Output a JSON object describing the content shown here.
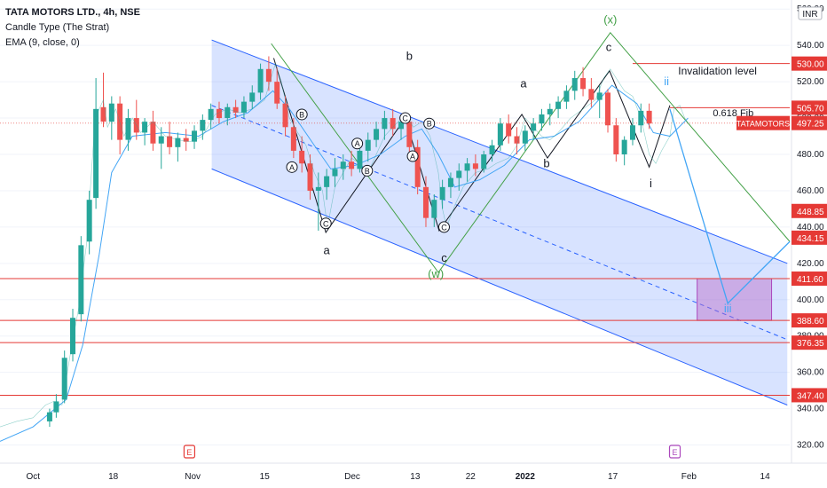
{
  "legend": {
    "title": "TATA MOTORS LTD., 4h, NSE",
    "line2": "Candle Type (The Strat)",
    "line3": "EMA (9, close, 0)"
  },
  "currency": "INR",
  "chart_data": {
    "type": "candlestick",
    "symbol": "TATAMOTORS",
    "interval": "4h",
    "ylim": [
      310,
      565
    ],
    "y_ticks": [
      320,
      340,
      360,
      380,
      400,
      420,
      440,
      460,
      480,
      500,
      520,
      540,
      560
    ],
    "y_tick_labels": [
      "320.00",
      "340.00",
      "360.00",
      "380.00",
      "400.00",
      "420.00",
      "440.00",
      "460.00",
      "480.00",
      "500.00",
      "520.00",
      "540.00",
      "560.00"
    ],
    "x_ticks": [
      {
        "label": "Oct",
        "pos": 0.04
      },
      {
        "label": "18",
        "pos": 0.137
      },
      {
        "label": "Nov",
        "pos": 0.233
      },
      {
        "label": "15",
        "pos": 0.32
      },
      {
        "label": "Dec",
        "pos": 0.426
      },
      {
        "label": "13",
        "pos": 0.502
      },
      {
        "label": "22",
        "pos": 0.569
      },
      {
        "label": "2022",
        "pos": 0.635
      },
      {
        "label": "17",
        "pos": 0.741
      },
      {
        "label": "Feb",
        "pos": 0.833
      },
      {
        "label": "14",
        "pos": 0.925
      }
    ],
    "price_path": [
      [
        0.0,
        330
      ],
      [
        0.02,
        333
      ],
      [
        0.04,
        335
      ],
      [
        0.055,
        342
      ],
      [
        0.065,
        344
      ],
      [
        0.075,
        342
      ],
      [
        0.085,
        370
      ],
      [
        0.095,
        395
      ],
      [
        0.105,
        432
      ],
      [
        0.115,
        500
      ],
      [
        0.125,
        510
      ],
      [
        0.13,
        495
      ],
      [
        0.14,
        505
      ],
      [
        0.15,
        490
      ],
      [
        0.16,
        500
      ],
      [
        0.17,
        492
      ],
      [
        0.185,
        498
      ],
      [
        0.2,
        490
      ],
      [
        0.215,
        488
      ],
      [
        0.23,
        487
      ],
      [
        0.245,
        490
      ],
      [
        0.26,
        502
      ],
      [
        0.275,
        505
      ],
      [
        0.29,
        503
      ],
      [
        0.305,
        505
      ],
      [
        0.32,
        510
      ],
      [
        0.333,
        530
      ],
      [
        0.34,
        520
      ],
      [
        0.35,
        500
      ],
      [
        0.36,
        492
      ],
      [
        0.37,
        485
      ],
      [
        0.38,
        470
      ],
      [
        0.39,
        460
      ],
      [
        0.396,
        440
      ],
      [
        0.405,
        462
      ],
      [
        0.415,
        470
      ],
      [
        0.425,
        478
      ],
      [
        0.435,
        475
      ],
      [
        0.445,
        470
      ],
      [
        0.455,
        480
      ],
      [
        0.465,
        490
      ],
      [
        0.475,
        495
      ],
      [
        0.49,
        502
      ],
      [
        0.5,
        495
      ],
      [
        0.51,
        498
      ],
      [
        0.52,
        490
      ],
      [
        0.53,
        470
      ],
      [
        0.535,
        450
      ],
      [
        0.54,
        440
      ],
      [
        0.55,
        452
      ],
      [
        0.56,
        462
      ],
      [
        0.575,
        470
      ],
      [
        0.59,
        472
      ],
      [
        0.6,
        475
      ],
      [
        0.615,
        478
      ],
      [
        0.625,
        485
      ],
      [
        0.635,
        500
      ],
      [
        0.645,
        495
      ],
      [
        0.655,
        490
      ],
      [
        0.665,
        488
      ],
      [
        0.675,
        492
      ],
      [
        0.69,
        500
      ],
      [
        0.705,
        505
      ],
      [
        0.72,
        510
      ],
      [
        0.73,
        522
      ],
      [
        0.738,
        527
      ],
      [
        0.745,
        522
      ],
      [
        0.755,
        515
      ],
      [
        0.765,
        512
      ],
      [
        0.775,
        500
      ],
      [
        0.785,
        480
      ],
      [
        0.793,
        475
      ],
      [
        0.8,
        482
      ],
      [
        0.81,
        490
      ],
      [
        0.815,
        505
      ],
      [
        0.822,
        507
      ],
      [
        0.828,
        500
      ],
      [
        0.832,
        497.25
      ]
    ],
    "ema9_path": [
      [
        0.0,
        322
      ],
      [
        0.04,
        330
      ],
      [
        0.08,
        345
      ],
      [
        0.1,
        375
      ],
      [
        0.12,
        425
      ],
      [
        0.135,
        470
      ],
      [
        0.16,
        490
      ],
      [
        0.2,
        492
      ],
      [
        0.24,
        490
      ],
      [
        0.27,
        498
      ],
      [
        0.3,
        503
      ],
      [
        0.33,
        515
      ],
      [
        0.35,
        505
      ],
      [
        0.38,
        485
      ],
      [
        0.4,
        472
      ],
      [
        0.43,
        474
      ],
      [
        0.46,
        480
      ],
      [
        0.49,
        490
      ],
      [
        0.51,
        494
      ],
      [
        0.53,
        480
      ],
      [
        0.55,
        462
      ],
      [
        0.58,
        466
      ],
      [
        0.61,
        474
      ],
      [
        0.64,
        488
      ],
      [
        0.67,
        490
      ],
      [
        0.7,
        498
      ],
      [
        0.74,
        518
      ],
      [
        0.77,
        508
      ],
      [
        0.79,
        492
      ],
      [
        0.81,
        490
      ],
      [
        0.832,
        500
      ]
    ],
    "candles": [
      {
        "i": 0.06,
        "o": 333,
        "h": 340,
        "l": 330,
        "c": 338
      },
      {
        "i": 0.068,
        "o": 338,
        "h": 348,
        "l": 335,
        "c": 344
      },
      {
        "i": 0.078,
        "o": 345,
        "h": 372,
        "l": 343,
        "c": 368
      },
      {
        "i": 0.088,
        "o": 370,
        "h": 395,
        "l": 366,
        "c": 390
      },
      {
        "i": 0.098,
        "o": 392,
        "h": 435,
        "l": 388,
        "c": 430
      },
      {
        "i": 0.108,
        "o": 432,
        "h": 460,
        "l": 425,
        "c": 455
      },
      {
        "i": 0.116,
        "o": 456,
        "h": 522,
        "l": 450,
        "c": 505
      },
      {
        "i": 0.125,
        "o": 506,
        "h": 525,
        "l": 495,
        "c": 498
      },
      {
        "i": 0.135,
        "o": 498,
        "h": 512,
        "l": 488,
        "c": 508
      },
      {
        "i": 0.145,
        "o": 508,
        "h": 512,
        "l": 480,
        "c": 488
      },
      {
        "i": 0.155,
        "o": 488,
        "h": 505,
        "l": 482,
        "c": 500
      },
      {
        "i": 0.165,
        "o": 500,
        "h": 510,
        "l": 488,
        "c": 492
      },
      {
        "i": 0.175,
        "o": 492,
        "h": 500,
        "l": 485,
        "c": 498
      },
      {
        "i": 0.185,
        "o": 498,
        "h": 504,
        "l": 482,
        "c": 486
      },
      {
        "i": 0.195,
        "o": 486,
        "h": 495,
        "l": 472,
        "c": 490
      },
      {
        "i": 0.205,
        "o": 490,
        "h": 498,
        "l": 480,
        "c": 484
      },
      {
        "i": 0.215,
        "o": 484,
        "h": 492,
        "l": 476,
        "c": 489
      },
      {
        "i": 0.225,
        "o": 489,
        "h": 494,
        "l": 482,
        "c": 487
      },
      {
        "i": 0.235,
        "o": 487,
        "h": 496,
        "l": 483,
        "c": 493
      },
      {
        "i": 0.245,
        "o": 493,
        "h": 502,
        "l": 488,
        "c": 499
      },
      {
        "i": 0.255,
        "o": 499,
        "h": 508,
        "l": 494,
        "c": 505
      },
      {
        "i": 0.265,
        "o": 505,
        "h": 509,
        "l": 497,
        "c": 500
      },
      {
        "i": 0.275,
        "o": 500,
        "h": 508,
        "l": 496,
        "c": 506
      },
      {
        "i": 0.285,
        "o": 506,
        "h": 510,
        "l": 500,
        "c": 503
      },
      {
        "i": 0.295,
        "o": 503,
        "h": 512,
        "l": 500,
        "c": 509
      },
      {
        "i": 0.305,
        "o": 509,
        "h": 518,
        "l": 505,
        "c": 514
      },
      {
        "i": 0.315,
        "o": 514,
        "h": 530,
        "l": 510,
        "c": 527
      },
      {
        "i": 0.325,
        "o": 527,
        "h": 534,
        "l": 515,
        "c": 520
      },
      {
        "i": 0.335,
        "o": 520,
        "h": 528,
        "l": 505,
        "c": 508
      },
      {
        "i": 0.345,
        "o": 508,
        "h": 512,
        "l": 490,
        "c": 495
      },
      {
        "i": 0.355,
        "o": 495,
        "h": 500,
        "l": 478,
        "c": 482
      },
      {
        "i": 0.365,
        "o": 482,
        "h": 490,
        "l": 470,
        "c": 475
      },
      {
        "i": 0.375,
        "o": 475,
        "h": 480,
        "l": 455,
        "c": 460
      },
      {
        "i": 0.385,
        "o": 460,
        "h": 470,
        "l": 438,
        "c": 462
      },
      {
        "i": 0.395,
        "o": 462,
        "h": 472,
        "l": 455,
        "c": 468
      },
      {
        "i": 0.405,
        "o": 468,
        "h": 478,
        "l": 462,
        "c": 472
      },
      {
        "i": 0.415,
        "o": 472,
        "h": 480,
        "l": 466,
        "c": 476
      },
      {
        "i": 0.425,
        "o": 476,
        "h": 482,
        "l": 468,
        "c": 472
      },
      {
        "i": 0.435,
        "o": 472,
        "h": 485,
        "l": 470,
        "c": 482
      },
      {
        "i": 0.445,
        "o": 482,
        "h": 492,
        "l": 476,
        "c": 488
      },
      {
        "i": 0.455,
        "o": 488,
        "h": 498,
        "l": 484,
        "c": 494
      },
      {
        "i": 0.465,
        "o": 494,
        "h": 504,
        "l": 488,
        "c": 500
      },
      {
        "i": 0.475,
        "o": 500,
        "h": 505,
        "l": 490,
        "c": 494
      },
      {
        "i": 0.485,
        "o": 494,
        "h": 502,
        "l": 488,
        "c": 498
      },
      {
        "i": 0.495,
        "o": 498,
        "h": 500,
        "l": 480,
        "c": 484
      },
      {
        "i": 0.505,
        "o": 484,
        "h": 488,
        "l": 458,
        "c": 462
      },
      {
        "i": 0.515,
        "o": 462,
        "h": 468,
        "l": 440,
        "c": 445
      },
      {
        "i": 0.525,
        "o": 445,
        "h": 458,
        "l": 440,
        "c": 455
      },
      {
        "i": 0.535,
        "o": 455,
        "h": 466,
        "l": 450,
        "c": 462
      },
      {
        "i": 0.545,
        "o": 462,
        "h": 470,
        "l": 456,
        "c": 467
      },
      {
        "i": 0.555,
        "o": 467,
        "h": 475,
        "l": 460,
        "c": 471
      },
      {
        "i": 0.565,
        "o": 471,
        "h": 478,
        "l": 465,
        "c": 475
      },
      {
        "i": 0.575,
        "o": 475,
        "h": 480,
        "l": 468,
        "c": 472
      },
      {
        "i": 0.585,
        "o": 472,
        "h": 482,
        "l": 470,
        "c": 480
      },
      {
        "i": 0.595,
        "o": 480,
        "h": 488,
        "l": 476,
        "c": 485
      },
      {
        "i": 0.605,
        "o": 485,
        "h": 500,
        "l": 482,
        "c": 497
      },
      {
        "i": 0.615,
        "o": 497,
        "h": 502,
        "l": 486,
        "c": 490
      },
      {
        "i": 0.625,
        "o": 490,
        "h": 495,
        "l": 480,
        "c": 486
      },
      {
        "i": 0.635,
        "o": 486,
        "h": 496,
        "l": 482,
        "c": 493
      },
      {
        "i": 0.645,
        "o": 493,
        "h": 500,
        "l": 488,
        "c": 497
      },
      {
        "i": 0.655,
        "o": 497,
        "h": 505,
        "l": 493,
        "c": 502
      },
      {
        "i": 0.665,
        "o": 502,
        "h": 508,
        "l": 496,
        "c": 505
      },
      {
        "i": 0.675,
        "o": 505,
        "h": 512,
        "l": 500,
        "c": 509
      },
      {
        "i": 0.685,
        "o": 509,
        "h": 518,
        "l": 505,
        "c": 515
      },
      {
        "i": 0.695,
        "o": 515,
        "h": 526,
        "l": 510,
        "c": 522
      },
      {
        "i": 0.705,
        "o": 522,
        "h": 528,
        "l": 512,
        "c": 516
      },
      {
        "i": 0.715,
        "o": 516,
        "h": 522,
        "l": 506,
        "c": 510
      },
      {
        "i": 0.725,
        "o": 510,
        "h": 518,
        "l": 500,
        "c": 514
      },
      {
        "i": 0.735,
        "o": 514,
        "h": 516,
        "l": 492,
        "c": 496
      },
      {
        "i": 0.745,
        "o": 496,
        "h": 500,
        "l": 476,
        "c": 480
      },
      {
        "i": 0.755,
        "o": 480,
        "h": 490,
        "l": 474,
        "c": 488
      },
      {
        "i": 0.765,
        "o": 488,
        "h": 500,
        "l": 485,
        "c": 496
      },
      {
        "i": 0.775,
        "o": 496,
        "h": 508,
        "l": 492,
        "c": 504
      },
      {
        "i": 0.785,
        "o": 504,
        "h": 508,
        "l": 494,
        "c": 497
      }
    ],
    "horizontal_levels": [
      {
        "price": 411.6,
        "label": "411.60",
        "color": "#e53935"
      },
      {
        "price": 388.6,
        "label": "388.60",
        "color": "#e53935"
      },
      {
        "price": 376.35,
        "label": "376.35",
        "color": "#e53935"
      },
      {
        "price": 347.4,
        "label": "347.40",
        "color": "#e53935"
      }
    ],
    "price_badges": [
      {
        "price": 530.0,
        "label": "530.00",
        "color": "#e53935"
      },
      {
        "price": 505.7,
        "label": "505.70",
        "color": "#e53935"
      },
      {
        "price": 497.25,
        "label": "497.25",
        "color": "#e53935"
      },
      {
        "price": 448.85,
        "label": "448.85",
        "color": "#e53935"
      },
      {
        "price": 434.15,
        "label": "434.15",
        "color": "#e53935"
      },
      {
        "price": 411.6,
        "label": "411.60",
        "color": "#e53935"
      },
      {
        "price": 388.6,
        "label": "388.60",
        "color": "#e53935"
      },
      {
        "price": 376.35,
        "label": "376.35",
        "color": "#e53935"
      },
      {
        "price": 347.4,
        "label": "347.40",
        "color": "#e53935"
      }
    ],
    "symbol_badge": {
      "label": "TATAMOTORS",
      "price": 497.25
    },
    "annotations": [
      {
        "text": "Invalidation level",
        "color": "#e53935"
      },
      {
        "text": "0.618 Fib",
        "color": "#e53935"
      }
    ],
    "wave_labels": {
      "black": [
        "a",
        "b",
        "c",
        "a",
        "b",
        "c",
        "i"
      ],
      "green": [
        "(x)",
        "(w)"
      ],
      "blue": [
        "ii",
        "iii"
      ],
      "circled": [
        "A",
        "B",
        "C",
        "A",
        "B",
        "C",
        "A",
        "B",
        "C"
      ]
    },
    "event_markers": [
      "E",
      "E"
    ]
  }
}
